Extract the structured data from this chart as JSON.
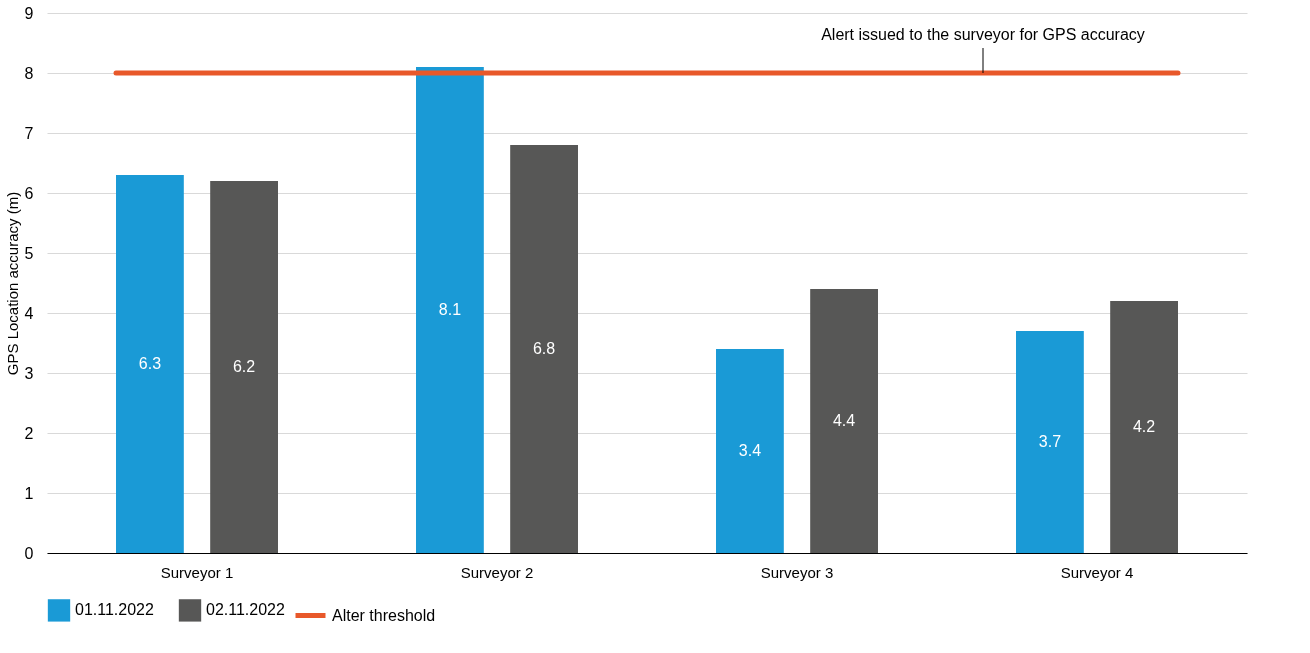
{
  "chart_data": {
    "type": "bar",
    "ylabel": "GPS Location accuracy (m)",
    "categories": [
      "Surveyor 1",
      "Surveyor 2",
      "Surveyor 3",
      "Surveyor 4"
    ],
    "series": [
      {
        "name": "01.11.2022",
        "color": "#1a9ad6",
        "values": [
          6.3,
          8.1,
          3.4,
          3.7
        ]
      },
      {
        "name": "02.11.2022",
        "color": "#575756",
        "values": [
          6.2,
          6.8,
          4.4,
          4.2
        ]
      }
    ],
    "ylim": [
      0,
      9
    ],
    "yticks": [
      0,
      1,
      2,
      3,
      4,
      5,
      6,
      7,
      8,
      9
    ],
    "grid": "y",
    "legend": "bottom left",
    "data_labels": true,
    "ref_lines": [
      {
        "axis": "y",
        "value": 8,
        "label": "Alter threshold",
        "color": "#e8582a",
        "line_style": "solid"
      }
    ],
    "annotations": [
      {
        "text": "Alert issued to the surveyor for GPS accuracy",
        "y": 8
      }
    ]
  }
}
